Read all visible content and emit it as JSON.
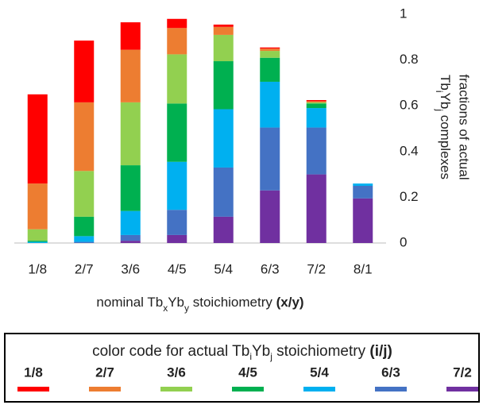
{
  "chart_data": {
    "type": "stacked_bar",
    "x_label": [
      "nominal Tb",
      "x",
      "Yb",
      "y",
      " stoichiometry ",
      "(x/y)"
    ],
    "y_label": [
      "fractions of actual",
      "Tb",
      "i",
      "Yb",
      "j",
      " complexes"
    ],
    "categories": [
      "1/8",
      "2/7",
      "3/6",
      "4/5",
      "5/4",
      "6/3",
      "7/2",
      "8/1"
    ],
    "ylim": [
      0,
      1
    ],
    "yticks": [
      0,
      0.2,
      0.4,
      0.6,
      0.8,
      1
    ],
    "grid": false,
    "legend_title": [
      "color code for actual Tb",
      "i",
      "Yb",
      "j",
      " stoichiometry ",
      "(i/j)"
    ],
    "series": [
      {
        "name": "1/8",
        "color": "#ff0000",
        "values": [
          0.39,
          0.27,
          0.12,
          0.04,
          0.01,
          0.005,
          0.005,
          0
        ]
      },
      {
        "name": "2/7",
        "color": "#ed7d31",
        "values": [
          0.2,
          0.3,
          0.23,
          0.115,
          0.035,
          0.01,
          0.005,
          0
        ]
      },
      {
        "name": "3/6",
        "color": "#92d050",
        "values": [
          0.05,
          0.2,
          0.275,
          0.215,
          0.115,
          0.03,
          0.005,
          0
        ]
      },
      {
        "name": "4/5",
        "color": "#00b050",
        "values": [
          0.005,
          0.085,
          0.2,
          0.255,
          0.21,
          0.105,
          0.02,
          0
        ]
      },
      {
        "name": "5/4",
        "color": "#00b0f0",
        "values": [
          0.005,
          0.025,
          0.105,
          0.21,
          0.255,
          0.2,
          0.085,
          0.01
        ]
      },
      {
        "name": "6/3",
        "color": "#4472c4",
        "values": [
          0,
          0.005,
          0.025,
          0.11,
          0.215,
          0.275,
          0.205,
          0.055
        ]
      },
      {
        "name": "7/2",
        "color": "#7030a0",
        "values": [
          0,
          0,
          0.01,
          0.035,
          0.115,
          0.23,
          0.3,
          0.195
        ]
      }
    ]
  }
}
